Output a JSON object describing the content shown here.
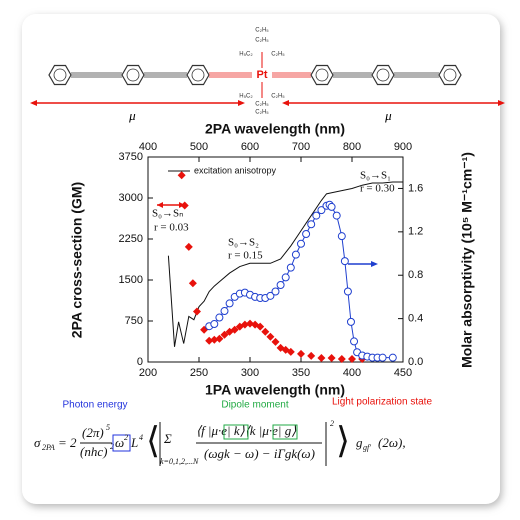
{
  "molecule": {
    "metal": "Pt",
    "ethyl": "C₂H₅",
    "ethyl_left": "H₅C₂",
    "dipole": "μ⃗"
  },
  "chart_data": {
    "type": "line",
    "xlabel": "1PA wavelength (nm)",
    "x2label": "2PA wavelength (nm)",
    "ylabel": "2PA cross-section (GM)",
    "y2label": "Molar absorptivity (10⁵ M⁻¹cm⁻¹)",
    "xlim": [
      200,
      450
    ],
    "xticks": [
      200,
      250,
      300,
      350,
      400,
      450
    ],
    "x2lim": [
      400,
      900
    ],
    "x2ticks": [
      400,
      500,
      600,
      700,
      800,
      900
    ],
    "ylim": [
      0,
      3750
    ],
    "yticks": [
      0,
      750,
      1500,
      2250,
      3000,
      3750
    ],
    "y2lim": [
      0,
      1.89
    ],
    "y2ticks": [
      {
        "value": 0,
        "label": "0.0"
      },
      0.4,
      0.8,
      1.2,
      1.6
    ],
    "series": [
      {
        "name": "excitation anisotropy",
        "color": "#111111",
        "axis": "y2",
        "marker": "none",
        "line": true,
        "x": [
          220,
          226,
          230,
          235,
          240,
          245,
          250,
          255,
          260,
          265,
          270,
          280,
          290,
          300,
          310,
          320,
          330,
          340,
          350,
          360,
          370,
          375,
          380,
          390,
          400,
          410,
          420,
          430,
          440,
          450
        ],
        "values": [
          0.98,
          0.14,
          0.37,
          0.17,
          0.42,
          0.39,
          0.51,
          0.56,
          0.65,
          0.7,
          0.74,
          0.82,
          0.88,
          0.91,
          0.91,
          0.91,
          0.95,
          1.07,
          1.21,
          1.35,
          1.49,
          1.55,
          1.56,
          1.58,
          1.6,
          1.63,
          1.65,
          1.65,
          1.66,
          1.66
        ]
      },
      {
        "color": "#e8120c",
        "axis": "y",
        "marker": "diamond",
        "line": false,
        "x": [
          233,
          236,
          240,
          244,
          248,
          255,
          260,
          265,
          270,
          275,
          280,
          285,
          290,
          295,
          300,
          305,
          310,
          315,
          320,
          325,
          330,
          335,
          340,
          350,
          360,
          370,
          380,
          390,
          400,
          410
        ],
        "values": [
          3417,
          2863,
          2106,
          1441,
          924,
          591,
          388,
          406,
          425,
          499,
          554,
          591,
          646,
          683,
          702,
          683,
          646,
          554,
          462,
          369,
          259,
          222,
          185,
          148,
          111,
          74,
          74,
          55,
          55,
          55
        ]
      },
      {
        "color": "#1f3fcf",
        "axis": "y2",
        "marker": "circle",
        "line": true,
        "x": [
          260,
          265,
          270,
          275,
          280,
          285,
          290,
          295,
          300,
          305,
          310,
          315,
          320,
          325,
          330,
          335,
          340,
          345,
          350,
          355,
          360,
          365,
          370,
          375,
          378,
          380,
          385,
          390,
          393,
          396,
          399,
          402,
          405,
          410,
          415,
          420,
          425,
          430,
          440
        ],
        "values": [
          0.33,
          0.35,
          0.41,
          0.47,
          0.54,
          0.6,
          0.63,
          0.64,
          0.62,
          0.6,
          0.59,
          0.59,
          0.61,
          0.65,
          0.71,
          0.78,
          0.87,
          0.99,
          1.09,
          1.18,
          1.27,
          1.35,
          1.4,
          1.44,
          1.45,
          1.43,
          1.35,
          1.16,
          0.93,
          0.65,
          0.37,
          0.19,
          0.09,
          0.06,
          0.05,
          0.04,
          0.04,
          0.04,
          0.04
        ]
      }
    ],
    "annotations": [
      "S₀→Sₙ",
      "r = 0.03",
      "S₀→S₂",
      "r = 0.15",
      "S₀→S₁",
      "r = 0.30"
    ]
  },
  "equation": {
    "labels": [
      "Photon energy",
      "Dipole moment",
      "Light polarization state"
    ],
    "lhs": "σ",
    "lhs_sub": "2PA",
    "coef": "= 2",
    "num": "(2π)",
    "num_sup": "5",
    "den": "(nhc)",
    "den_sup": "2",
    "omega": "ω",
    "omega_sup": "2",
    "length": "L",
    "length_sup": "4",
    "sum": "Σ",
    "sum_sub": "k=0,1,2,...N",
    "frac_num": "⟨f |μ·e| k⟩⟨k |μ·e| g⟩",
    "frac_den": "(ωgk − ω) − iΓgk(ω)",
    "abs_sup": "2",
    "g": "g",
    "g_sub": "gf′",
    "tail": "(2ω),"
  }
}
